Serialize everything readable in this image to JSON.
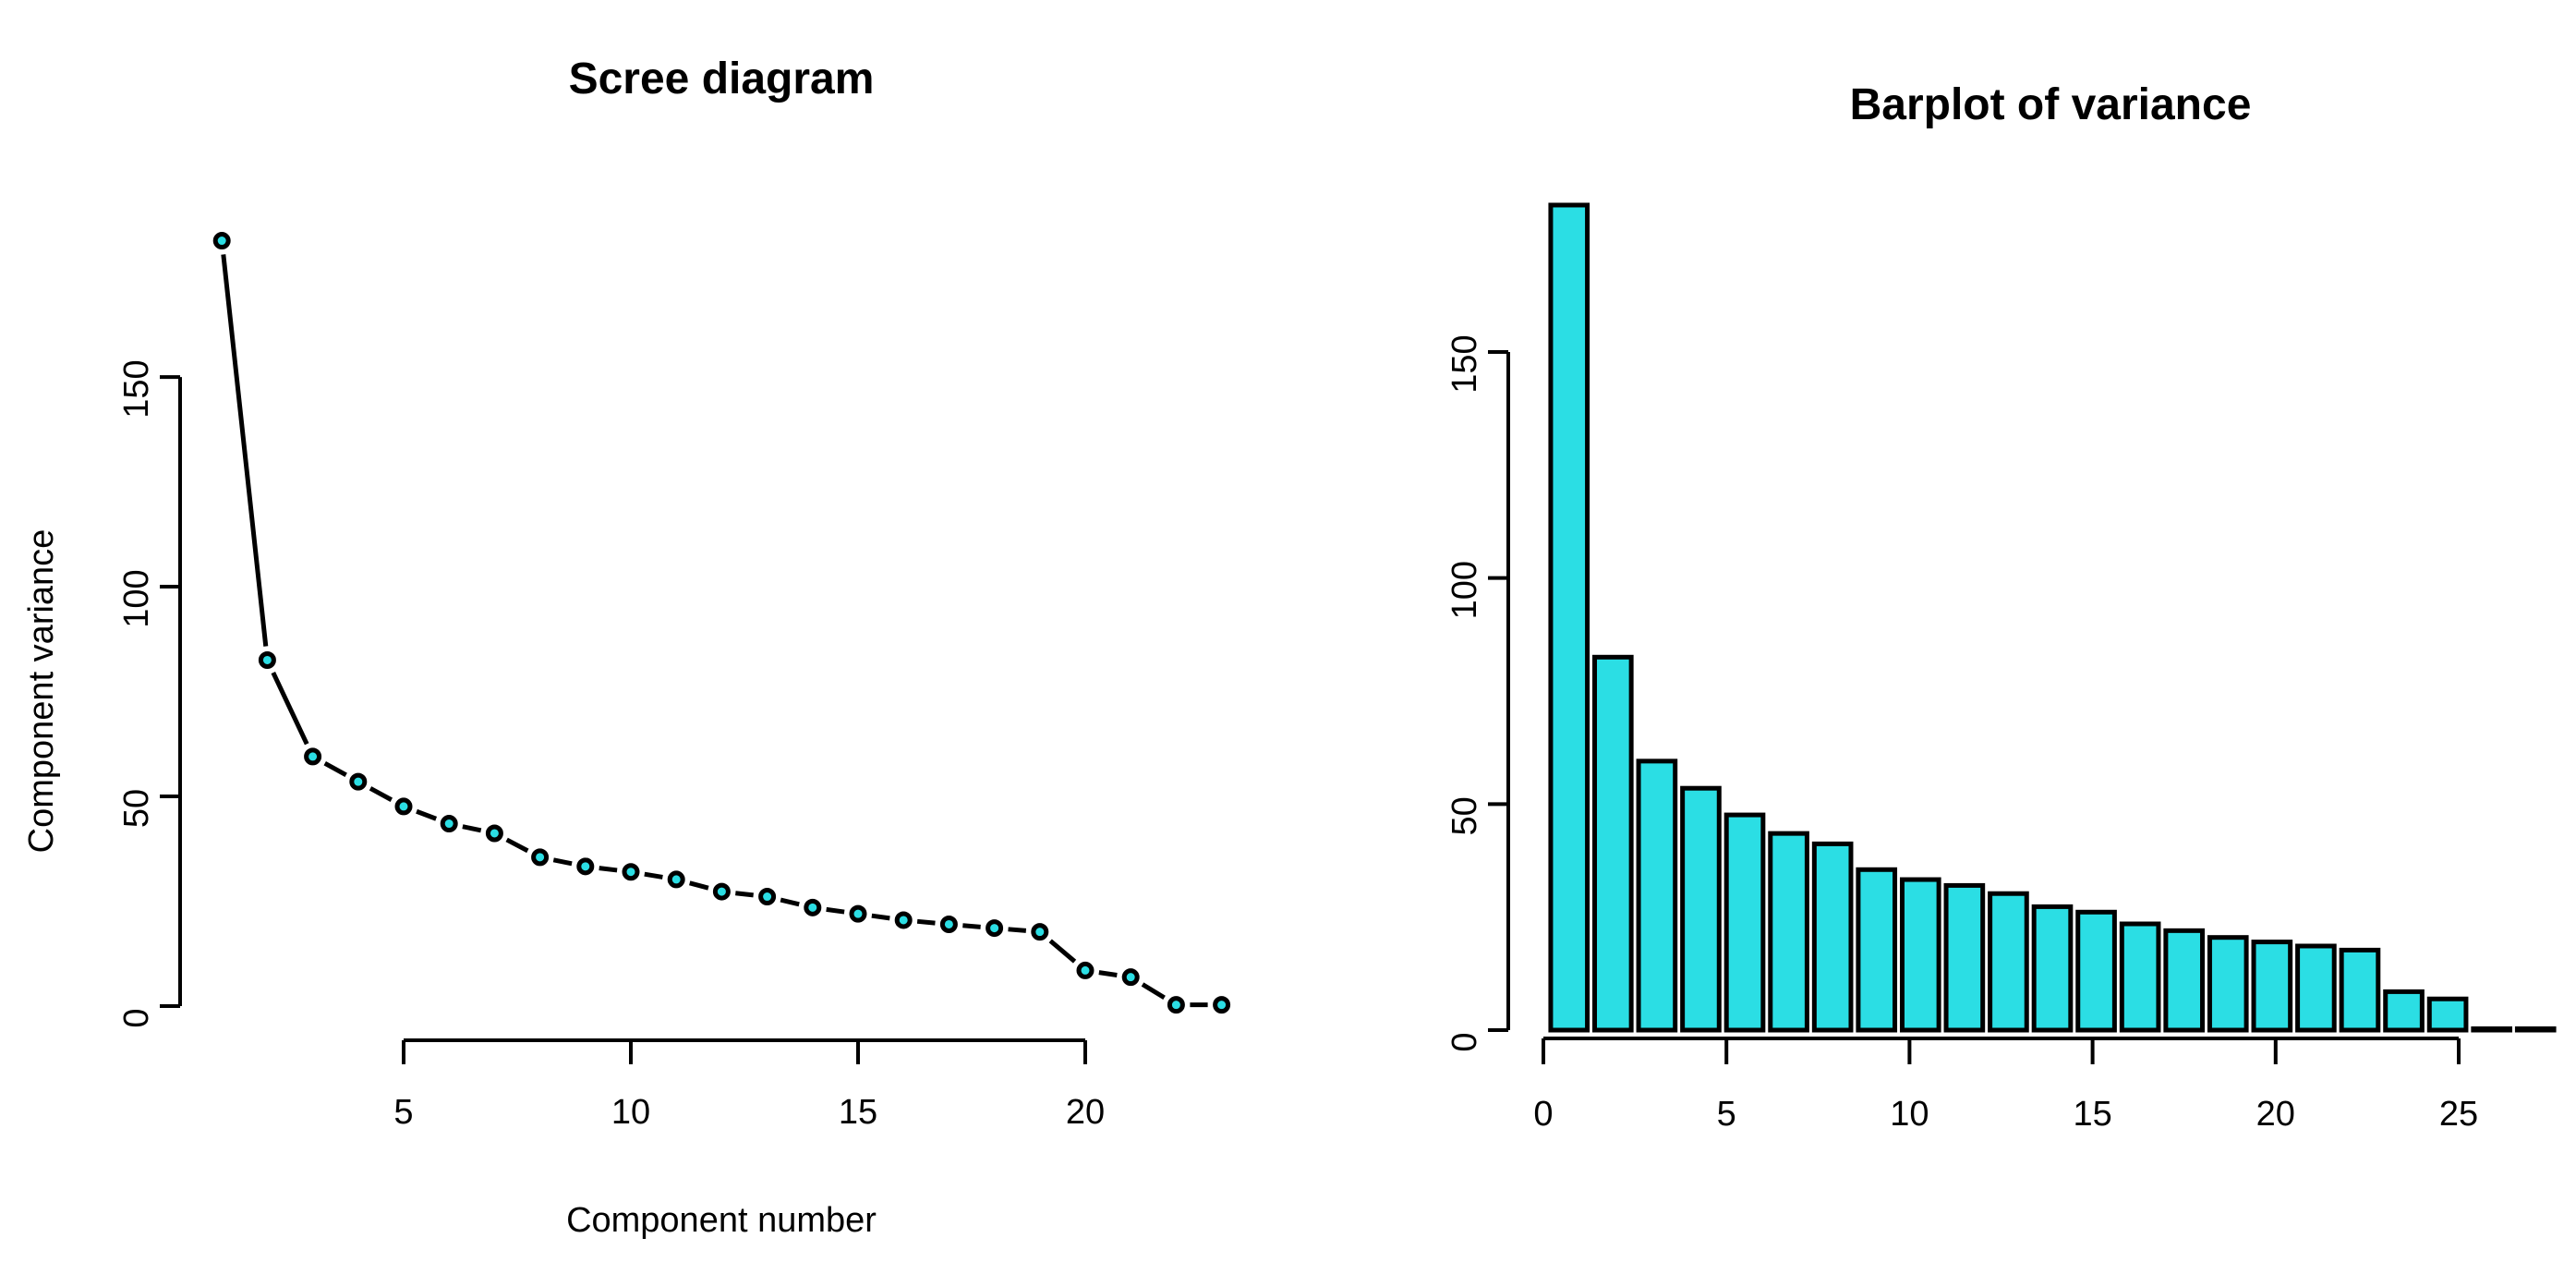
{
  "figure": {
    "background": "#FFFFFF",
    "panels": 2
  },
  "colors": {
    "accent_fill": "#2BDEE4",
    "stroke": "#000000",
    "text": "#000000",
    "background": "#FFFFFF"
  },
  "chart_data": [
    {
      "type": "line",
      "title": "Scree diagram",
      "xlabel": "Component number",
      "ylabel": "Component variance",
      "x": [
        1,
        2,
        3,
        4,
        5,
        6,
        7,
        8,
        9,
        10,
        11,
        12,
        13,
        14,
        15,
        16,
        17,
        18,
        19,
        20,
        21,
        22,
        23
      ],
      "values": [
        182.5,
        82.5,
        59.5,
        53.5,
        47.6,
        43.5,
        41.2,
        35.5,
        33.3,
        32.0,
        30.2,
        27.3,
        26.1,
        23.5,
        22.0,
        20.5,
        19.5,
        18.6,
        17.7,
        8.5,
        6.9,
        0.3,
        0.3
      ],
      "x_ticks": [
        5,
        10,
        15,
        20
      ],
      "y_ticks": [
        0,
        50,
        100,
        150
      ],
      "xlim": [
        1,
        23
      ],
      "ylim": [
        0,
        183
      ],
      "grid": false,
      "legend": "none",
      "marker": "filled-circle",
      "marker_fill": "#2BDEE4",
      "marker_stroke": "#000000",
      "line_color": "#000000",
      "line_mode": "points-and-segments-with-gaps"
    },
    {
      "type": "bar",
      "title": "Barplot of variance",
      "xlabel": "",
      "ylabel": "",
      "categories": [
        1,
        2,
        3,
        4,
        5,
        6,
        7,
        8,
        9,
        10,
        11,
        12,
        13,
        14,
        15,
        16,
        17,
        18,
        19,
        20,
        21,
        22,
        23
      ],
      "values": [
        182.5,
        82.5,
        59.5,
        53.5,
        47.6,
        43.5,
        41.2,
        35.5,
        33.3,
        32.0,
        30.2,
        27.3,
        26.1,
        23.5,
        22.0,
        20.5,
        19.5,
        18.6,
        17.7,
        8.5,
        6.9,
        0.3,
        0.3
      ],
      "x_ticks": [
        0,
        5,
        10,
        15,
        20,
        25
      ],
      "y_ticks": [
        0,
        50,
        100,
        150
      ],
      "xlim": [
        0,
        25
      ],
      "ylim": [
        0,
        183
      ],
      "grid": false,
      "legend": "none",
      "bar_fill": "#2BDEE4",
      "bar_border": "#000000"
    }
  ]
}
